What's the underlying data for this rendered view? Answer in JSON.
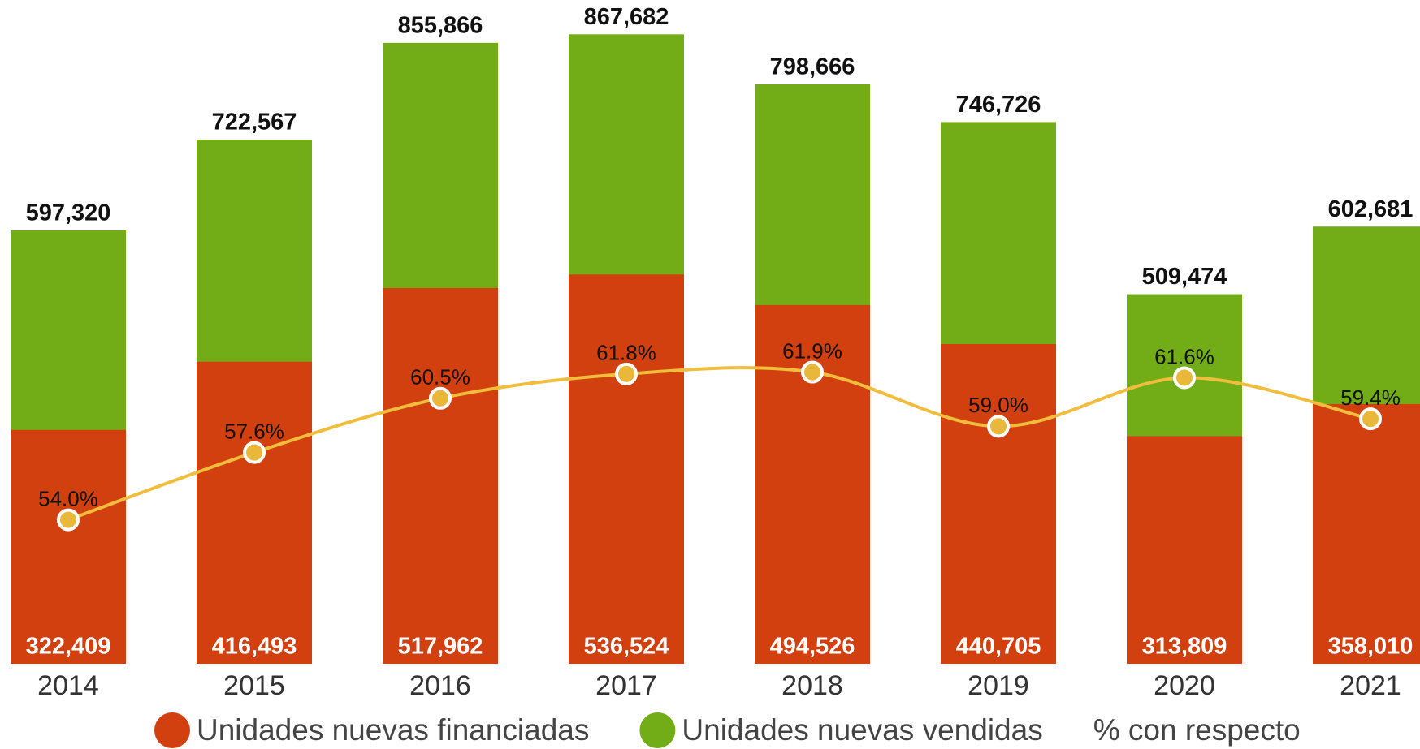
{
  "chart_data": {
    "type": "bar",
    "categories": [
      "2014",
      "2015",
      "2016",
      "2017",
      "2018",
      "2019",
      "2020",
      "2021"
    ],
    "ylim": [
      0,
      915000
    ],
    "y2lim": [
      46.3,
      81.8
    ],
    "series": [
      {
        "name": "Unidades nuevas vendidas",
        "color": "#72ad17",
        "values": [
          597320,
          722567,
          855866,
          867682,
          798666,
          746726,
          509474,
          602681
        ],
        "value_labels": [
          "597,320",
          "722,567",
          "855,866",
          "867,682",
          "798,666",
          "746,726",
          "509,474",
          "602,681"
        ]
      },
      {
        "name": "Unidades nuevas financiadas",
        "color": "#d1400e",
        "values": [
          322409,
          416493,
          517962,
          536524,
          494526,
          440705,
          313809,
          358010
        ],
        "value_labels": [
          "322,409",
          "416,493",
          "517,962",
          "536,524",
          "494,526",
          "440,705",
          "313,809",
          "358,010"
        ]
      },
      {
        "name": "% con respecto",
        "color": "#f0bd3c",
        "type": "line",
        "axis": "y2",
        "values": [
          54.0,
          57.6,
          60.5,
          61.8,
          61.9,
          59.0,
          61.6,
          59.4
        ],
        "value_labels": [
          "54.0%",
          "57.6%",
          "60.5%",
          "61.8%",
          "61.9%",
          "59.0%",
          "61.6%",
          "59.4%"
        ]
      }
    ]
  }
}
